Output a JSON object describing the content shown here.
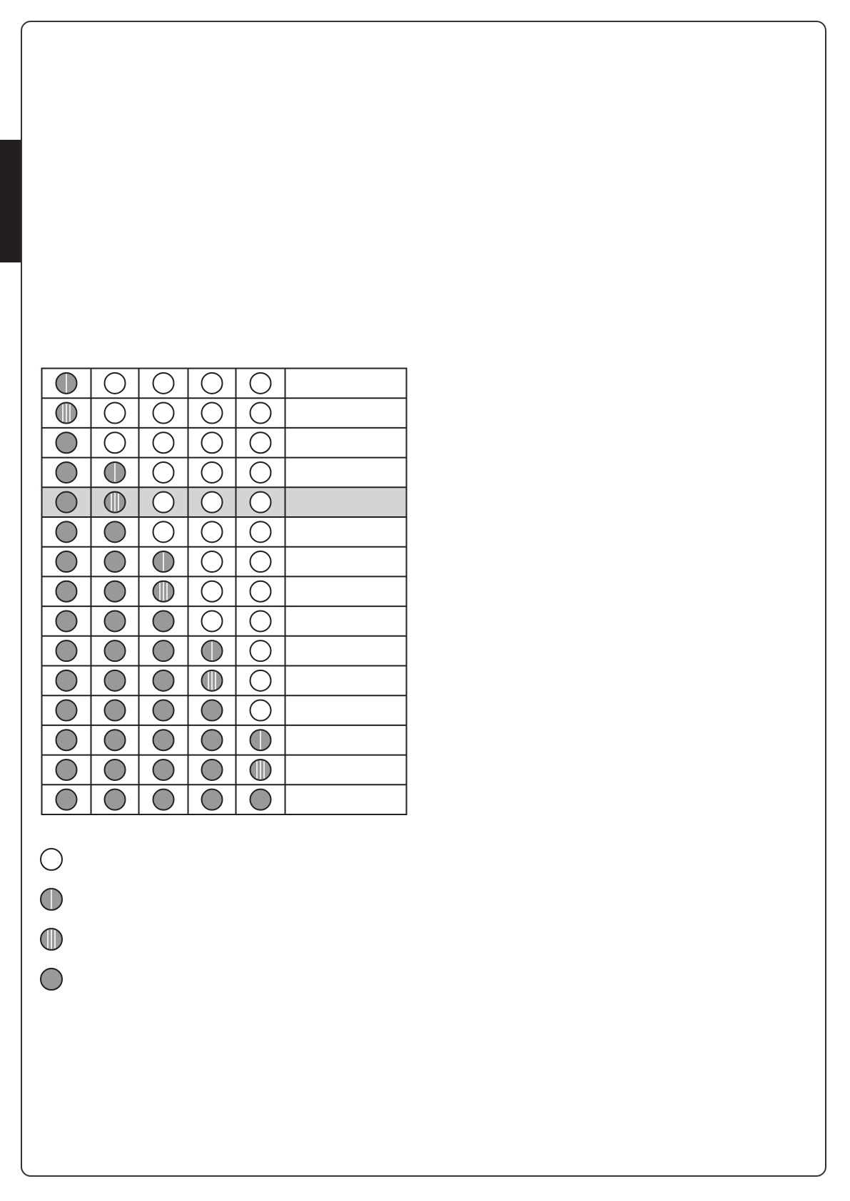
{
  "colors": {
    "led_on": "#999999",
    "outline": "#231f20",
    "highlight_row": "#d4d4d4"
  },
  "led_states_legend": [
    "off",
    "slow-blink",
    "fast-blink",
    "on"
  ],
  "table": {
    "highlighted_row": 4,
    "rows": [
      [
        "slow-blink",
        "off",
        "off",
        "off",
        "off"
      ],
      [
        "fast-blink",
        "off",
        "off",
        "off",
        "off"
      ],
      [
        "on",
        "off",
        "off",
        "off",
        "off"
      ],
      [
        "on",
        "slow-blink",
        "off",
        "off",
        "off"
      ],
      [
        "on",
        "fast-blink",
        "off",
        "off",
        "off"
      ],
      [
        "on",
        "on",
        "off",
        "off",
        "off"
      ],
      [
        "on",
        "on",
        "slow-blink",
        "off",
        "off"
      ],
      [
        "on",
        "on",
        "fast-blink",
        "off",
        "off"
      ],
      [
        "on",
        "on",
        "on",
        "off",
        "off"
      ],
      [
        "on",
        "on",
        "on",
        "slow-blink",
        "off"
      ],
      [
        "on",
        "on",
        "on",
        "fast-blink",
        "off"
      ],
      [
        "on",
        "on",
        "on",
        "on",
        "off"
      ],
      [
        "on",
        "on",
        "on",
        "on",
        "slow-blink"
      ],
      [
        "on",
        "on",
        "on",
        "on",
        "fast-blink"
      ],
      [
        "on",
        "on",
        "on",
        "on",
        "on"
      ]
    ]
  },
  "legend": [
    {
      "state": "off"
    },
    {
      "state": "slow-blink"
    },
    {
      "state": "fast-blink"
    },
    {
      "state": "on"
    }
  ]
}
